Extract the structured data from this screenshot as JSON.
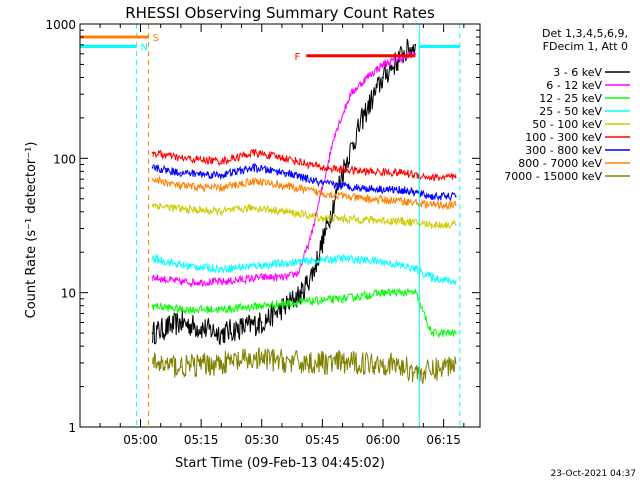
{
  "chart_data": {
    "type": "line",
    "title": "RHESSI Observing Summary Count Rates",
    "xlabel": "Start Time (09-Feb-13 04:45:02)",
    "ylabel": "Count Rate (s⁻¹ detector⁻¹)",
    "yscale": "log",
    "ylim": [
      1,
      1000
    ],
    "xlim": [
      "04:45:02",
      "06:24:00"
    ],
    "x_ticks": [
      "05:00",
      "05:15",
      "05:30",
      "05:45",
      "06:00",
      "06:15"
    ],
    "y_ticks": [
      "1",
      "10",
      "100",
      "1000"
    ],
    "timestamp": "23-Oct-2021 04:37",
    "legend": {
      "placement": "right",
      "header": [
        "Det 1,3,4,5,6,9,",
        "FDecim 1, Att 0"
      ]
    },
    "series": [
      {
        "name": "3 - 6 keV",
        "color": "#000000",
        "x": [
          "05:03",
          "05:10",
          "05:20",
          "05:30",
          "05:36",
          "05:40",
          "05:43",
          "05:46",
          "05:50",
          "05:55",
          "06:00",
          "06:05",
          "06:08"
        ],
        "values": [
          5,
          6,
          5,
          6,
          8,
          10,
          15,
          30,
          80,
          200,
          400,
          600,
          700
        ]
      },
      {
        "name": "6 - 12 keV",
        "color": "#ff00ff",
        "x": [
          "05:03",
          "05:10",
          "05:20",
          "05:30",
          "05:36",
          "05:39",
          "05:42",
          "05:45",
          "05:48",
          "05:52",
          "05:56",
          "06:00",
          "06:04",
          "06:08"
        ],
        "values": [
          13,
          12,
          12,
          13,
          13,
          14,
          25,
          60,
          150,
          300,
          400,
          500,
          550,
          600
        ]
      },
      {
        "name": "12 - 25 keV",
        "color": "#00ff00",
        "x": [
          "05:03",
          "05:10",
          "05:20",
          "05:30",
          "05:40",
          "05:50",
          "06:00",
          "06:08",
          "06:12",
          "06:18"
        ],
        "values": [
          8,
          7.5,
          7.5,
          8,
          8.5,
          9,
          10,
          10,
          5,
          5
        ]
      },
      {
        "name": "25 - 50 keV",
        "color": "#00ffff",
        "x": [
          "05:03",
          "05:10",
          "05:20",
          "05:30",
          "05:40",
          "05:50",
          "06:00",
          "06:08",
          "06:12",
          "06:18"
        ],
        "values": [
          18,
          16,
          15,
          16,
          17,
          18,
          17,
          15,
          13,
          12
        ]
      },
      {
        "name": "50 - 100 keV",
        "color": "#cccc00",
        "x": [
          "05:03",
          "05:10",
          "05:20",
          "05:28",
          "05:36",
          "05:45",
          "05:55",
          "06:05",
          "06:12",
          "06:18"
        ],
        "values": [
          45,
          42,
          40,
          43,
          40,
          36,
          35,
          34,
          32,
          32
        ]
      },
      {
        "name": "100 - 300 keV",
        "color": "#ff0000",
        "x": [
          "05:03",
          "05:10",
          "05:20",
          "05:28",
          "05:36",
          "05:45",
          "05:55",
          "06:05",
          "06:12",
          "06:18"
        ],
        "values": [
          110,
          100,
          95,
          110,
          100,
          85,
          80,
          78,
          72,
          72
        ]
      },
      {
        "name": "300 - 800 keV",
        "color": "#0000ff",
        "x": [
          "05:03",
          "05:10",
          "05:20",
          "05:28",
          "05:36",
          "05:45",
          "05:55",
          "06:05",
          "06:12",
          "06:18"
        ],
        "values": [
          85,
          78,
          75,
          85,
          78,
          65,
          60,
          58,
          52,
          52
        ]
      },
      {
        "name": "800 - 7000 keV",
        "color": "#ff8000",
        "x": [
          "05:03",
          "05:10",
          "05:20",
          "05:28",
          "05:36",
          "05:45",
          "05:55",
          "06:05",
          "06:12",
          "06:18"
        ],
        "values": [
          70,
          62,
          60,
          68,
          62,
          55,
          50,
          48,
          45,
          45
        ]
      },
      {
        "name": "7000 - 15000 keV",
        "color": "#808000",
        "x": [
          "05:03",
          "05:10",
          "05:20",
          "05:30",
          "05:40",
          "05:50",
          "06:00",
          "06:05",
          "06:10",
          "06:18"
        ],
        "values": [
          3,
          2.8,
          3,
          3.2,
          3,
          3,
          3,
          2.8,
          2.5,
          3
        ]
      }
    ],
    "annotations": [
      {
        "label": "S",
        "color": "#ff8000",
        "x_start": "04:45:02",
        "x_end": "05:02",
        "y": 800
      },
      {
        "label": "N",
        "color": "#00ffff",
        "x_start": "04:45:02",
        "x_end": "04:59",
        "y": 680
      },
      {
        "label": "F",
        "color": "#ff0000",
        "x_start": "05:41",
        "x_end": "06:08",
        "y": 580
      },
      {
        "label": "",
        "color": "#00ffff",
        "x_start": "06:09",
        "x_end": "06:19",
        "y": 680
      }
    ],
    "vertical_lines": [
      {
        "x": "04:45:02",
        "color": "#00ffff",
        "style": "solid"
      },
      {
        "x": "04:59",
        "color": "#00ffff",
        "style": "dashed"
      },
      {
        "x": "05:02",
        "color": "#ff8000",
        "style": "dashed"
      },
      {
        "x": "06:09",
        "color": "#00ffff",
        "style": "solid"
      },
      {
        "x": "06:19",
        "color": "#00ffff",
        "style": "dashed"
      }
    ]
  }
}
